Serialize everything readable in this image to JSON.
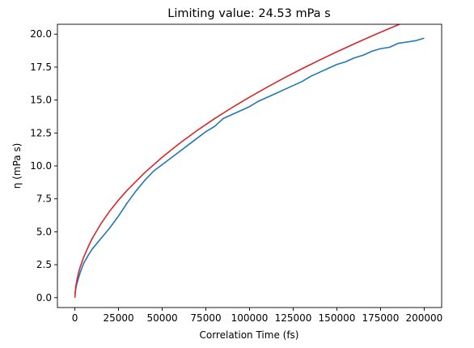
{
  "chart_data": {
    "type": "line",
    "title": "Limiting value: 24.53 mPa s",
    "xlabel": "Correlation Time (fs)",
    "ylabel": "η (mPa s)",
    "xlim": [
      -10000,
      210000
    ],
    "ylim": [
      -0.75,
      20.75
    ],
    "xticks": [
      0,
      25000,
      50000,
      75000,
      100000,
      125000,
      150000,
      175000,
      200000
    ],
    "xtick_labels": [
      "0",
      "25000",
      "50000",
      "75000",
      "100000",
      "125000",
      "150000",
      "175000",
      "200000"
    ],
    "yticks": [
      0.0,
      2.5,
      5.0,
      7.5,
      10.0,
      12.5,
      15.0,
      17.5,
      20.0
    ],
    "ytick_labels": [
      "0.0",
      "2.5",
      "5.0",
      "7.5",
      "10.0",
      "12.5",
      "15.0",
      "17.5",
      "20.0"
    ],
    "grid": false,
    "series": [
      {
        "color": "#1f77b4",
        "x": [
          0,
          1000,
          3000,
          5000,
          8000,
          10000,
          15000,
          20000,
          25000,
          30000,
          35000,
          40000,
          45000,
          50000,
          55000,
          60000,
          65000,
          70000,
          75000,
          80000,
          85000,
          90000,
          95000,
          100000,
          105000,
          110000,
          115000,
          120000,
          125000,
          130000,
          135000,
          140000,
          145000,
          150000,
          155000,
          160000,
          165000,
          170000,
          175000,
          180000,
          185000,
          190000,
          195000,
          200000
        ],
        "y": [
          0.3,
          1.0,
          1.9,
          2.6,
          3.3,
          3.7,
          4.5,
          5.3,
          6.2,
          7.2,
          8.1,
          8.9,
          9.6,
          10.1,
          10.6,
          11.1,
          11.6,
          12.1,
          12.6,
          13.0,
          13.6,
          13.9,
          14.2,
          14.5,
          14.9,
          15.2,
          15.5,
          15.8,
          16.1,
          16.4,
          16.8,
          17.1,
          17.4,
          17.7,
          17.9,
          18.2,
          18.4,
          18.7,
          18.9,
          19.0,
          19.3,
          19.4,
          19.5,
          19.7
        ]
      },
      {
        "color": "#d62728",
        "x": [
          0,
          500,
          1000,
          2000,
          3000,
          5000,
          8000,
          10000,
          15000,
          20000,
          25000,
          30000,
          40000,
          50000,
          60000,
          70000,
          80000,
          90000,
          100000,
          110000,
          120000,
          130000,
          140000,
          150000,
          160000,
          170000,
          180000,
          190000,
          200000
        ],
        "y": [
          0.0,
          0.81,
          1.22,
          1.84,
          2.31,
          3.06,
          3.97,
          4.51,
          5.63,
          6.58,
          7.41,
          8.16,
          9.49,
          10.66,
          11.72,
          12.69,
          13.59,
          14.43,
          15.22,
          15.97,
          16.69,
          17.37,
          18.03,
          18.66,
          19.27,
          19.86,
          20.43,
          20.98,
          21.52
        ]
      }
    ]
  }
}
